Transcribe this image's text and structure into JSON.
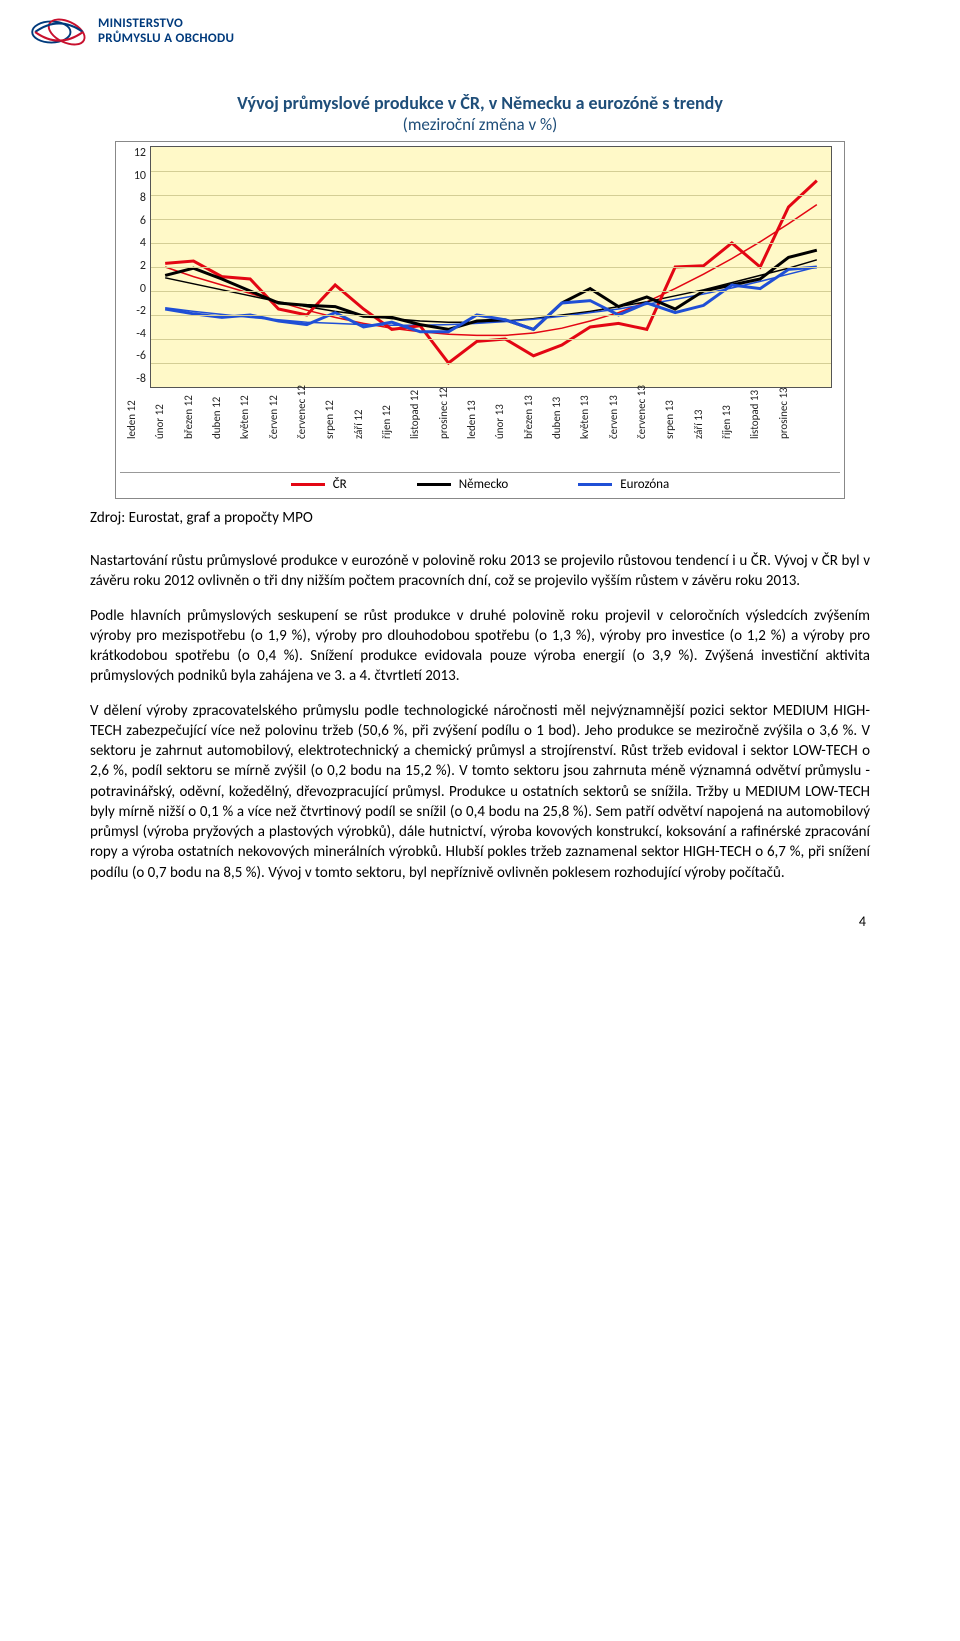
{
  "ministry": {
    "line1": "MINISTERSTVO",
    "line2": "PRŮMYSLU A OBCHODU",
    "logo_color_primary": "#003a7c",
    "logo_color_red": "#c8102e"
  },
  "chart": {
    "title": "Vývoj průmyslové produkce v ČR, v Německu a eurozóně s trendy",
    "subtitle": "(meziroční změna v %)",
    "title_color": "#1f4e79",
    "plot_bg": "#fff9c8",
    "grid_color": "#d4ce95",
    "border_color": "#555555",
    "y": {
      "min": -8,
      "max": 12,
      "step": 2,
      "ticks": [
        12,
        10,
        8,
        6,
        4,
        2,
        0,
        -2,
        -4,
        -6,
        -8
      ]
    },
    "x_labels": [
      "leden 12",
      "únor 12",
      "březen 12",
      "duben 12",
      "květen 12",
      "červen 12",
      "červenec 12",
      "srpen 12",
      "září 12",
      "říjen 12",
      "listopad 12",
      "prosinec 12",
      "leden 13",
      "únor 13",
      "březen 13",
      "duben 13",
      "květen 13",
      "červen 13",
      "červenec 13",
      "srpen 13",
      "září 13",
      "říjen 13",
      "listopad 13",
      "prosinec 13"
    ],
    "series": [
      {
        "name": "ČR",
        "color": "#e30613",
        "width": 3,
        "values": [
          2.3,
          2.5,
          1.2,
          1.0,
          -1.5,
          -2.0,
          0.5,
          -1.5,
          -3.2,
          -2.9,
          -6.0,
          -4.2,
          -4.0,
          -5.4,
          -4.5,
          -3.0,
          -2.7,
          -3.2,
          2.0,
          2.1,
          4.0,
          2.0,
          7.0,
          9.2
        ]
      },
      {
        "name": "Německo",
        "color": "#000000",
        "width": 3,
        "values": [
          1.3,
          1.9,
          1.0,
          0.0,
          -1.0,
          -1.2,
          -1.3,
          -2.1,
          -2.2,
          -2.8,
          -3.2,
          -2.5,
          -2.4,
          -3.2,
          -1.0,
          0.2,
          -1.3,
          -0.5,
          -1.5,
          0.0,
          0.5,
          1.0,
          2.8,
          3.4
        ]
      },
      {
        "name": "Eurozóna",
        "color": "#1f4fd6",
        "width": 3,
        "values": [
          -1.5,
          -1.9,
          -2.2,
          -2.0,
          -2.5,
          -2.8,
          -1.8,
          -3.0,
          -2.6,
          -3.4,
          -3.4,
          -2.0,
          -2.4,
          -3.2,
          -1.0,
          -0.8,
          -2.0,
          -1.0,
          -1.8,
          -1.2,
          0.5,
          0.2,
          1.8,
          2.0
        ]
      }
    ],
    "trends": [
      {
        "color": "#e30613",
        "width": 1.5,
        "values": [
          2.0,
          1.2,
          0.5,
          -0.2,
          -0.9,
          -1.6,
          -2.2,
          -2.7,
          -3.1,
          -3.4,
          -3.6,
          -3.7,
          -3.7,
          -3.5,
          -3.1,
          -2.5,
          -1.8,
          -0.9,
          0.2,
          1.4,
          2.7,
          4.1,
          5.6,
          7.2
        ]
      },
      {
        "color": "#000000",
        "width": 1.5,
        "values": [
          1.1,
          0.6,
          0.1,
          -0.4,
          -0.9,
          -1.3,
          -1.7,
          -2.0,
          -2.3,
          -2.5,
          -2.6,
          -2.6,
          -2.5,
          -2.3,
          -2.0,
          -1.7,
          -1.3,
          -0.9,
          -0.4,
          0.1,
          0.7,
          1.3,
          1.9,
          2.6
        ]
      },
      {
        "color": "#1f4fd6",
        "width": 1.5,
        "values": [
          -1.4,
          -1.7,
          -1.95,
          -2.2,
          -2.4,
          -2.6,
          -2.7,
          -2.8,
          -2.85,
          -2.85,
          -2.8,
          -2.7,
          -2.55,
          -2.35,
          -2.1,
          -1.8,
          -1.5,
          -1.1,
          -0.7,
          -0.25,
          0.25,
          0.8,
          1.4,
          2.0
        ]
      }
    ],
    "legend": [
      {
        "label": "ČR",
        "color": "#e30613"
      },
      {
        "label": "Německo",
        "color": "#000000"
      },
      {
        "label": "Eurozóna",
        "color": "#1f4fd6"
      }
    ]
  },
  "source": "Zdroj: Eurostat, graf a propočty MPO",
  "paragraphs": [
    "Nastartování růstu průmyslové produkce v eurozóně v polovině roku 2013 se projevilo růstovou tendencí i u ČR. Vývoj v ČR byl v závěru roku 2012 ovlivněn o tři dny nižším počtem pracovních dní, což se projevilo vyšším růstem v závěru roku 2013.",
    "Podle hlavních průmyslových seskupení se růst produkce v druhé polovině roku projevil v celoročních výsledcích zvýšením výroby pro mezispotřebu (o 1,9 %), výroby pro dlouhodobou spotřebu (o 1,3 %), výroby pro investice (o 1,2 %) a výroby pro krátkodobou spotřebu (o 0,4 %). Snížení produkce evidovala pouze výroba energií (o 3,9 %). Zvýšená investiční aktivita průmyslových podniků byla zahájena ve 3. a 4. čtvrtletí 2013.",
    "V dělení výroby zpracovatelského průmyslu podle technologické náročnosti měl nejvýznamnější pozici sektor MEDIUM HIGH-TECH zabezpečující více než polovinu tržeb (50,6 %, při zvýšení podílu o 1 bod). Jeho produkce se meziročně zvýšila o 3,6 %. V sektoru je zahrnut automobilový, elektrotechnický a chemický průmysl a strojírenství. Růst tržeb evidoval i sektor LOW-TECH o 2,6 %, podíl sektoru se mírně zvýšil (o 0,2 bodu na 15,2 %). V tomto sektoru jsou zahrnuta méně významná odvětví průmyslu - potravinářský, oděvní, kožedělný, dřevozpracující průmysl. Produkce u ostatních sektorů se snížila. Tržby u MEDIUM LOW-TECH byly mírně nižší o 0,1 % a více než čtvrtinový podíl se snížil (o 0,4 bodu na 25,8 %). Sem patří odvětví napojená na automobilový průmysl (výroba pryžových a plastových výrobků), dále hutnictví, výroba kovových konstrukcí, koksování a rafinérské zpracování ropy a výroba ostatních nekovových minerálních výrobků. Hlubší pokles tržeb zaznamenal sektor HIGH-TECH o 6,7 %, při snížení podílu (o 0,7 bodu na 8,5 %). Vývoj v tomto sektoru, byl nepříznivě ovlivněn poklesem rozhodující výroby počítačů."
  ],
  "page_number": "4"
}
